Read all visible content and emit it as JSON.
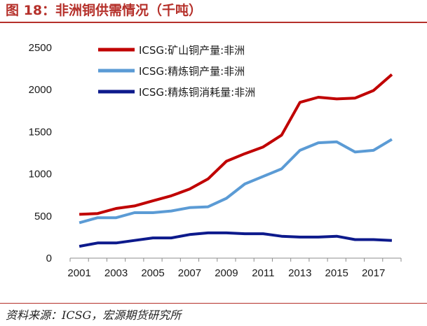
{
  "figure": {
    "title": "图 18：非洲铜供需情况（千吨）",
    "source": "资料来源：ICSG，宏源期货研究所",
    "accent_color": "#b5302a"
  },
  "chart_data": {
    "type": "line",
    "title": "",
    "xlabel": "",
    "ylabel": "",
    "x": [
      2001,
      2002,
      2003,
      2004,
      2005,
      2006,
      2007,
      2008,
      2009,
      2010,
      2011,
      2012,
      2013,
      2014,
      2015,
      2016,
      2017,
      2018
    ],
    "xticks": [
      "2001",
      "2003",
      "2005",
      "2007",
      "2009",
      "2011",
      "2013",
      "2015",
      "2017"
    ],
    "ylim": [
      0,
      2500
    ],
    "yticks": [
      "0",
      "500",
      "1000",
      "1500",
      "2000",
      "2500"
    ],
    "grid": false,
    "legend_position": "top-left",
    "series": [
      {
        "name": "ICSG:矿山铜产量:非洲",
        "color": "#c00000",
        "values": [
          520,
          530,
          590,
          620,
          680,
          740,
          820,
          940,
          1150,
          1240,
          1320,
          1460,
          1850,
          1910,
          1890,
          1900,
          1990,
          2180
        ]
      },
      {
        "name": "ICSG:精炼铜产量:非洲",
        "color": "#5b9bd5",
        "values": [
          420,
          480,
          480,
          540,
          540,
          560,
          600,
          610,
          710,
          880,
          970,
          1060,
          1280,
          1370,
          1380,
          1260,
          1280,
          1410
        ]
      },
      {
        "name": "ICSG:精炼铜消耗量:非洲",
        "color": "#0d1a8c",
        "values": [
          140,
          180,
          180,
          210,
          240,
          240,
          280,
          300,
          300,
          290,
          290,
          260,
          250,
          250,
          260,
          220,
          220,
          210
        ]
      }
    ]
  }
}
